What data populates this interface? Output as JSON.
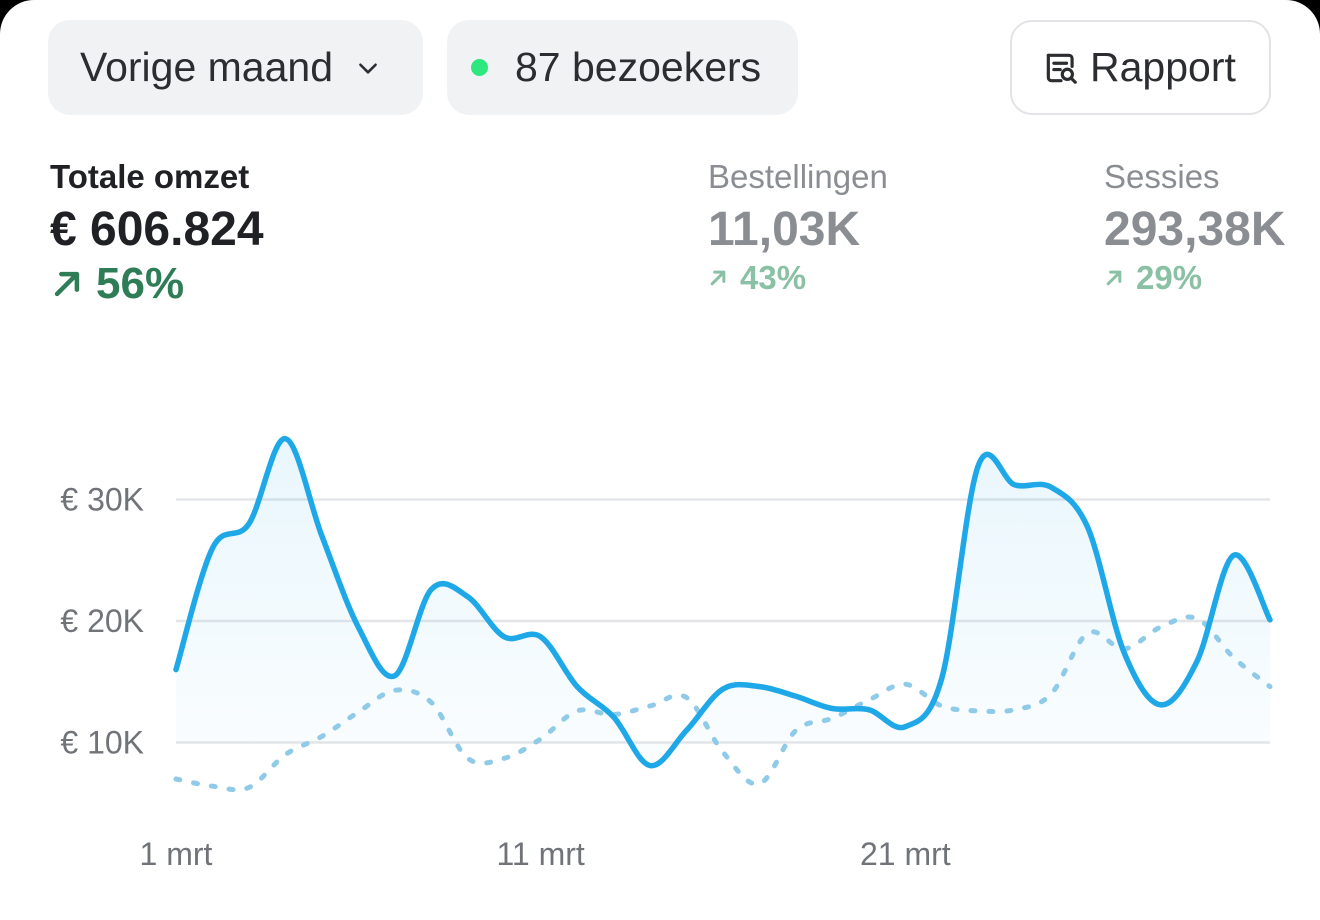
{
  "toolbar": {
    "period_label": "Vorige maand",
    "visitors_label": "87 bezoekers",
    "report_label": "Rapport"
  },
  "metrics": [
    {
      "label": "Totale omzet",
      "value": "€ 606.824",
      "delta": "56%"
    },
    {
      "label": "Bestellingen",
      "value": "11,03K",
      "delta": "43%"
    },
    {
      "label": "Sessies",
      "value": "293,38K",
      "delta": "29%"
    }
  ],
  "colors": {
    "current": "#1fa8e8",
    "previous": "#8fcbe8",
    "delta_positive": "#2e7d57",
    "live_dot": "#2ee87f"
  },
  "chart_data": {
    "type": "line",
    "x": [
      "1 mrt",
      "2 mrt",
      "3 mrt",
      "4 mrt",
      "5 mrt",
      "6 mrt",
      "7 mrt",
      "8 mrt",
      "9 mrt",
      "10 mrt",
      "11 mrt",
      "12 mrt",
      "13 mrt",
      "14 mrt",
      "15 mrt",
      "16 mrt",
      "17 mrt",
      "18 mrt",
      "19 mrt",
      "20 mrt",
      "21 mrt",
      "22 mrt",
      "23 mrt",
      "24 mrt",
      "25 mrt",
      "26 mrt",
      "27 mrt",
      "28 mrt",
      "29 mrt",
      "30 mrt",
      "31 mrt"
    ],
    "x_ticks": [
      "1 mrt",
      "11 mrt",
      "21 mrt"
    ],
    "y_ticks": [
      "€ 10K",
      "€ 20K",
      "€ 30K"
    ],
    "y_tick_values": [
      10000,
      20000,
      30000
    ],
    "ylim": [
      0,
      36000
    ],
    "grid": true,
    "series": [
      {
        "values": [
          16000,
          26000,
          28000,
          35000,
          27000,
          19500,
          15500,
          22600,
          22000,
          18700,
          18700,
          14600,
          12100,
          8100,
          11000,
          14400,
          14600,
          13800,
          12800,
          12700,
          11300,
          15300,
          32800,
          31200,
          31000,
          27700,
          17400,
          13100,
          16700,
          25400,
          20100
        ]
      },
      {
        "values": [
          7000,
          6400,
          6300,
          9000,
          10500,
          12500,
          14300,
          13300,
          8700,
          8700,
          10300,
          12600,
          12300,
          13000,
          13700,
          9200,
          6600,
          11000,
          12000,
          13500,
          14800,
          13000,
          12600,
          12700,
          14000,
          19000,
          17700,
          19500,
          20200,
          17000,
          14600
        ],
        "style": "dashed"
      }
    ]
  }
}
